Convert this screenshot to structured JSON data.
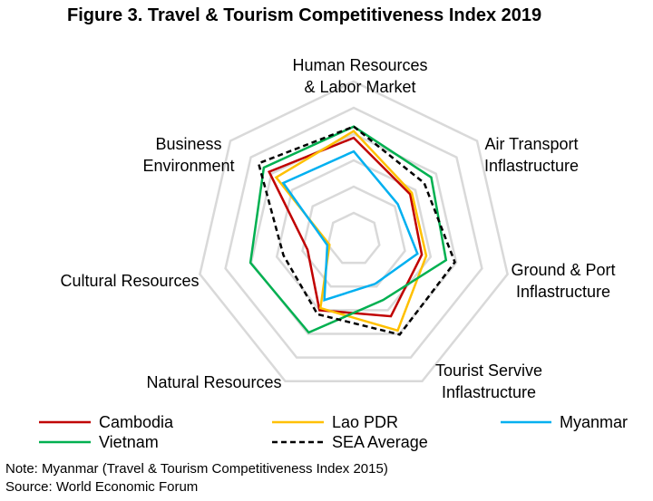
{
  "chart_data": {
    "type": "radar",
    "title": "Figure 3. Travel & Tourism Competitiveness Index 2019",
    "axes": [
      [
        "Human Resources",
        "& Labor Market"
      ],
      [
        "Air Transport",
        "Inflastructure"
      ],
      [
        "Ground & Port",
        "Inflastructure"
      ],
      [
        "Tourist Servive",
        "Inflastructure"
      ],
      [
        "Natural Resources"
      ],
      [
        "Cultural Resources"
      ],
      [
        "Business",
        "Environment"
      ]
    ],
    "rlim": [
      0,
      7
    ],
    "grid_levels": 6,
    "grid": true,
    "legend_position": "bottom",
    "series": [
      {
        "name": "Cambodia",
        "color": "#C00000",
        "dash": "",
        "values": [
          4.5,
          3.2,
          3.1,
          3.8,
          3.5,
          2.1,
          4.8
        ]
      },
      {
        "name": "Lao PDR",
        "color": "#FFC000",
        "dash": "",
        "values": [
          4.8,
          3.3,
          3.3,
          4.5,
          3.4,
          1.1,
          4.4
        ]
      },
      {
        "name": "Myanmar",
        "color": "#00B0F0",
        "dash": "",
        "values": [
          3.9,
          2.5,
          2.9,
          2.2,
          3.0,
          1.2,
          4.0
        ]
      },
      {
        "name": "Vietnam",
        "color": "#00B050",
        "dash": "",
        "values": [
          5.0,
          4.4,
          4.2,
          3.0,
          4.6,
          4.7,
          5.1
        ]
      },
      {
        "name": "SEA Average",
        "color": "#000000",
        "dash": "6,4",
        "values": [
          5.0,
          4.0,
          4.6,
          4.7,
          3.7,
          3.2,
          5.4
        ]
      }
    ]
  },
  "notes": [
    "Note: Myanmar (Travel & Tourism Competitiveness Index 2015)",
    "Source: World Economic Forum"
  ]
}
